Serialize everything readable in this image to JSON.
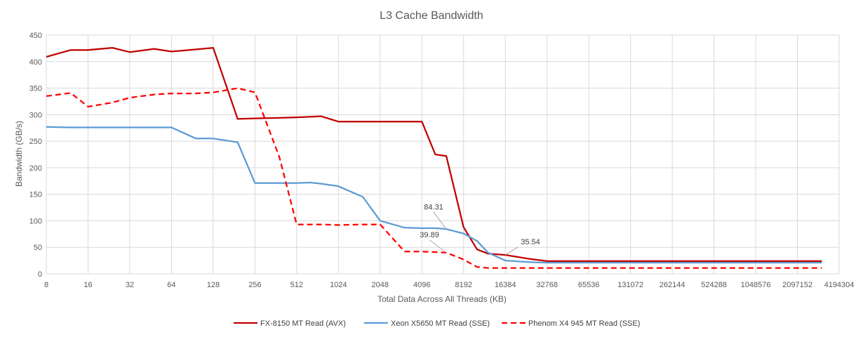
{
  "chart_data": {
    "type": "line",
    "title": "L3 Cache Bandwidth",
    "xlabel": "Total Data Across All Threads (KB)",
    "ylabel": "Bandwidth (GB/s)",
    "x_scale": "log2",
    "xlim": [
      8,
      4194304
    ],
    "ylim": [
      0,
      450
    ],
    "x_ticks": [
      "8",
      "16",
      "32",
      "64",
      "128",
      "256",
      "512",
      "1024",
      "2048",
      "4096",
      "8192",
      "16384",
      "32768",
      "65536",
      "131072",
      "262144",
      "524288",
      "1048576",
      "2097152",
      "4194304"
    ],
    "y_ticks": [
      "0",
      "50",
      "100",
      "150",
      "200",
      "250",
      "300",
      "350",
      "400",
      "450"
    ],
    "grid": true,
    "legend_position": "bottom",
    "series": [
      {
        "name": "FX-8150 MT Read (AVX)",
        "color": "#c00000",
        "dash": "solid",
        "x": [
          8,
          12,
          16,
          24,
          32,
          48,
          64,
          96,
          128,
          192,
          256,
          384,
          512,
          768,
          1024,
          1536,
          2048,
          3072,
          4096,
          5120,
          6144,
          8192,
          10240,
          12288,
          16384,
          24576,
          32768,
          65536,
          131072,
          262144,
          524288,
          1048576,
          2097152,
          3145728
        ],
        "y": [
          409,
          422,
          422,
          426,
          418,
          424,
          419,
          423,
          426,
          292,
          293,
          294,
          295,
          297,
          287,
          287,
          287,
          287,
          287,
          225,
          222,
          88,
          46,
          38,
          35.54,
          28,
          24,
          24,
          24,
          24,
          24,
          24,
          24,
          24
        ]
      },
      {
        "name": "Xeon X5650 MT Read (SSE)",
        "color": "#5b9bd5",
        "dash": "solid",
        "x": [
          8,
          12,
          16,
          24,
          32,
          48,
          64,
          96,
          128,
          192,
          256,
          384,
          512,
          640,
          768,
          1024,
          1536,
          2048,
          3072,
          4096,
          5120,
          6144,
          8192,
          10240,
          12288,
          16384,
          24576,
          32768,
          65536,
          131072,
          262144,
          524288,
          1048576,
          2097152,
          3145728
        ],
        "y": [
          277,
          276,
          276,
          276,
          276,
          276,
          276,
          255,
          255,
          248,
          171,
          171,
          171,
          172,
          170,
          165,
          145,
          100,
          87,
          86,
          86,
          84.31,
          76,
          62,
          40,
          25,
          22,
          21,
          21,
          21,
          21,
          21,
          21,
          21,
          21
        ]
      },
      {
        "name": "Phenom X4 945 MT Read (SSE)",
        "color": "#ff0000",
        "dash": "dashed",
        "x": [
          8,
          12,
          16,
          24,
          32,
          48,
          64,
          96,
          128,
          192,
          256,
          384,
          512,
          768,
          1024,
          1536,
          2048,
          3072,
          4096,
          5120,
          6144,
          8192,
          10240,
          12288,
          16384,
          24576,
          32768,
          65536,
          131072,
          262144,
          524288,
          1048576,
          2097152,
          3145728
        ],
        "y": [
          335,
          341,
          315,
          323,
          332,
          338,
          340,
          340,
          342,
          350,
          342,
          220,
          93,
          93,
          92,
          93,
          93,
          42,
          42,
          41,
          39.89,
          27,
          13,
          11,
          11,
          11,
          11,
          11,
          11,
          11,
          11,
          11,
          11,
          11
        ]
      }
    ],
    "annotations": [
      {
        "text": "84.31",
        "series": 1,
        "x": 6144,
        "y": 84.31
      },
      {
        "text": "39.89",
        "series": 2,
        "x": 6144,
        "y": 39.89
      },
      {
        "text": "35.54",
        "series": 0,
        "x": 16384,
        "y": 35.54
      }
    ]
  }
}
